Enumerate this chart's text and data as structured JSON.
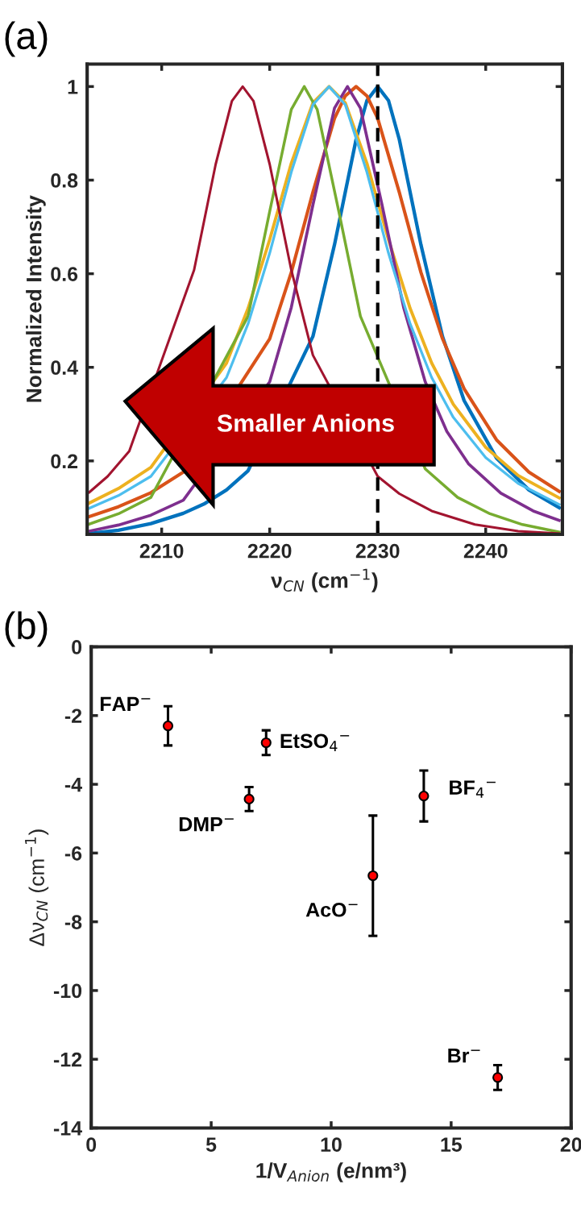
{
  "chart_data": [
    {
      "type": "line",
      "xlabel": "ν$_{CN}$ (cm$^{−1}$)",
      "ylabel": "Normalized Intensity",
      "annotations": [
        "(a)",
        "Smaller Anions"
      ],
      "xlim": [
        2203.1,
        2247.1
      ],
      "ylim": [
        0.043,
        1.048
      ],
      "xticks": [
        2210,
        2220,
        2230,
        2240
      ],
      "yticks": [
        0.2,
        0.4,
        0.6,
        0.8,
        1
      ],
      "grid": false,
      "legend": false,
      "marker": "none",
      "line_style": "solid",
      "ref_lines": [
        {
          "axis": "x",
          "value": 2230,
          "color": "#000000",
          "line_style": "dashed"
        }
      ],
      "series": [
        {
          "color": "#0072bd",
          "x": [
            2203.3,
            2206,
            2209,
            2212,
            2214,
            2216,
            2218,
            2224,
            2226,
            2228,
            2229,
            2230,
            2231,
            2232,
            2234,
            2236,
            2238,
            2241,
            2244,
            2246.8
          ],
          "values": [
            0.045,
            0.052,
            0.066,
            0.088,
            0.109,
            0.138,
            0.179,
            0.466,
            0.662,
            0.887,
            0.97,
            1,
            0.97,
            0.887,
            0.662,
            0.466,
            0.329,
            0.206,
            0.138,
            0.1
          ]
        },
        {
          "color": "#d95319",
          "x": [
            2203.3,
            2206,
            2209,
            2212,
            2220,
            2222,
            2224,
            2226,
            2227,
            2228,
            2229,
            2230,
            2232,
            2234,
            2236,
            2238,
            2241,
            2244,
            2246.8
          ],
          "values": [
            0.081,
            0.102,
            0.132,
            0.176,
            0.461,
            0.603,
            0.774,
            0.932,
            0.98,
            1,
            0.98,
            0.932,
            0.774,
            0.603,
            0.461,
            0.354,
            0.245,
            0.176,
            0.135
          ]
        },
        {
          "color": "#edb120",
          "x": [
            2203.3,
            2206,
            2209,
            2216,
            2218,
            2220,
            2222,
            2224,
            2225.5,
            2227,
            2229,
            2231,
            2233,
            2235,
            2237,
            2240,
            2243,
            2246.8
          ],
          "values": [
            0.11,
            0.141,
            0.186,
            0.409,
            0.526,
            0.673,
            0.836,
            0.965,
            1,
            0.965,
            0.836,
            0.673,
            0.526,
            0.409,
            0.321,
            0.229,
            0.169,
            0.121
          ]
        },
        {
          "color": "#7e2f8e",
          "x": [
            2203.3,
            2206,
            2209,
            2212,
            2220,
            2222,
            2224,
            2226,
            2227.2,
            2228.4,
            2230.4,
            2232.4,
            2234.4,
            2236.4,
            2238.4,
            2241.4,
            2244.4,
            2246.8
          ],
          "values": [
            0.05,
            0.063,
            0.084,
            0.116,
            0.369,
            0.528,
            0.747,
            0.954,
            1,
            0.954,
            0.747,
            0.528,
            0.369,
            0.263,
            0.194,
            0.131,
            0.093,
            0.073
          ]
        },
        {
          "color": "#77ac30",
          "x": [
            2203.3,
            2206,
            2209,
            2218,
            2220,
            2222,
            2223.2,
            2224.4,
            2226.4,
            2228.4,
            2234.4,
            2237.4,
            2240.4,
            2243.4,
            2246.8
          ],
          "values": [
            0.065,
            0.087,
            0.122,
            0.509,
            0.733,
            0.951,
            1,
            0.951,
            0.733,
            0.509,
            0.183,
            0.122,
            0.087,
            0.064,
            0.048
          ]
        },
        {
          "color": "#4dbeee",
          "x": [
            2203.3,
            2206,
            2209,
            2216,
            2218,
            2220,
            2222,
            2224,
            2225.5,
            2227,
            2229,
            2231,
            2233,
            2235,
            2237,
            2240,
            2243,
            2246.8
          ],
          "values": [
            0.099,
            0.126,
            0.167,
            0.378,
            0.493,
            0.644,
            0.817,
            0.961,
            1,
            0.961,
            0.817,
            0.644,
            0.493,
            0.378,
            0.293,
            0.207,
            0.152,
            0.107
          ]
        },
        {
          "color": "#a2142f",
          "x": [
            2203.3,
            2205,
            2207,
            2213,
            2215,
            2216.5,
            2217.5,
            2218.5,
            2220,
            2222,
            2224,
            2230,
            2232,
            2235,
            2239,
            2243,
            2246.8
          ],
          "values": [
            0.133,
            0.167,
            0.221,
            0.608,
            0.834,
            0.969,
            1,
            0.969,
            0.834,
            0.608,
            0.426,
            0.167,
            0.13,
            0.093,
            0.064,
            0.05,
            0.045
          ]
        }
      ]
    },
    {
      "type": "scatter",
      "xlabel": "1/V$_{Anion}$ (e/nm³)",
      "ylabel": "Δν$_{CN}$ (cm$^{−1}$)",
      "annotations": [
        "(b)",
        {
          "text": "FAP$^{−}$",
          "x": 3.2,
          "y": -2.3
        },
        {
          "text": "EtSO$_{4}$$^{−}$",
          "x": 7.29,
          "y": -2.79
        },
        {
          "text": "DMP$^{−}$",
          "x": 6.58,
          "y": -4.43
        },
        {
          "text": "AcO$^{−}$",
          "x": 11.74,
          "y": -6.66
        },
        {
          "text": "BF$_{4}$$^{−}$",
          "x": 13.86,
          "y": -4.34
        },
        {
          "text": "Br$^{−}$",
          "x": 16.94,
          "y": -12.53
        }
      ],
      "xlim": [
        0,
        20
      ],
      "ylim": [
        -14,
        0
      ],
      "xticks": [
        0,
        5,
        10,
        15,
        20
      ],
      "yticks": [
        -14,
        -12,
        -10,
        -8,
        -6,
        -4,
        -2,
        0
      ],
      "grid": false,
      "legend": false,
      "marker": "circle",
      "x": [
        3.2,
        7.29,
        6.58,
        11.74,
        13.86,
        16.94
      ],
      "values": [
        -2.3,
        -2.79,
        -4.43,
        -6.66,
        -4.34,
        -12.53
      ],
      "errors": [
        0.57,
        0.36,
        0.35,
        1.75,
        0.74,
        0.36
      ],
      "color": "#ff0000"
    }
  ]
}
